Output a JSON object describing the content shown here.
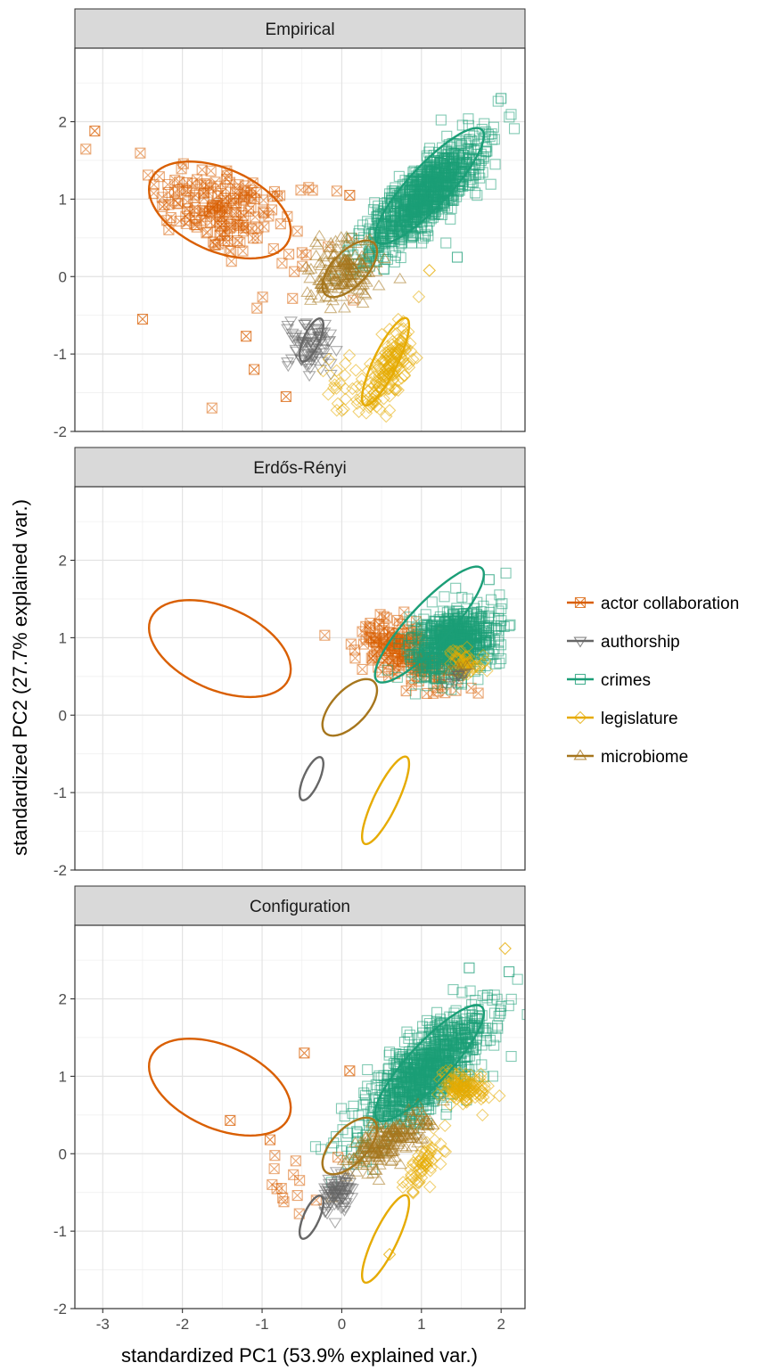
{
  "chart_data": {
    "type": "scatter",
    "xlabel": "standardized PC1 (53.9% explained var.)",
    "ylabel": "standardized PC2 (27.7% explained var.)",
    "xlim": [
      -3.35,
      2.3
    ],
    "ylim": [
      -2.0,
      2.95
    ],
    "x_ticks": [
      -3,
      -2,
      -1,
      0,
      1,
      2
    ],
    "y_ticks": [
      -2,
      -1,
      0,
      1,
      2
    ],
    "x_tick_labels": [
      "-3",
      "-2",
      "-1",
      "0",
      "1",
      "2"
    ],
    "y_tick_labels": [
      "-2",
      "-1",
      "0",
      "1",
      "2"
    ],
    "grid": true,
    "legend_position": "right",
    "colors": {
      "actor collaboration": "#d95f02",
      "authorship": "#666666",
      "crimes": "#1b9e77",
      "legislature": "#e6ab02",
      "microbiome": "#a6761d"
    },
    "series": [
      {
        "name": "actor collaboration",
        "marker": "square-x"
      },
      {
        "name": "authorship",
        "marker": "triangle-down"
      },
      {
        "name": "crimes",
        "marker": "square"
      },
      {
        "name": "legislature",
        "marker": "diamond"
      },
      {
        "name": "microbiome",
        "marker": "triangle-up"
      }
    ],
    "ellipses": [
      {
        "series": "actor collaboration",
        "center": [
          -1.53,
          0.86
        ],
        "rx": 0.95,
        "ry": 0.53,
        "angle_deg": -25
      },
      {
        "series": "authorship",
        "center": [
          -0.38,
          -0.82
        ],
        "rx": 0.3,
        "ry": 0.1,
        "angle_deg": 67
      },
      {
        "series": "crimes",
        "center": [
          1.1,
          1.17
        ],
        "rx": 0.98,
        "ry": 0.26,
        "angle_deg": 48
      },
      {
        "series": "legislature",
        "center": [
          0.55,
          -1.1
        ],
        "rx": 0.62,
        "ry": 0.15,
        "angle_deg": 65
      },
      {
        "series": "microbiome",
        "center": [
          0.1,
          0.1
        ],
        "rx": 0.45,
        "ry": 0.22,
        "angle_deg": 48
      }
    ],
    "panels": [
      {
        "title": "Empirical",
        "clusters": [
          {
            "series": "actor collaboration",
            "center": [
              -1.55,
              0.9
            ],
            "spread": [
              0.45,
              0.28
            ],
            "angle_deg": -20,
            "n": 160
          },
          {
            "series": "actor collaboration",
            "center": [
              -0.7,
              0.4
            ],
            "spread": [
              0.6,
              0.5
            ],
            "angle_deg": 0,
            "n": 25
          },
          {
            "series": "authorship",
            "center": [
              -0.38,
              -0.9
            ],
            "spread": [
              0.14,
              0.16
            ],
            "angle_deg": 65,
            "n": 80
          },
          {
            "series": "crimes",
            "center": [
              1.05,
              1.05
            ],
            "spread": [
              0.5,
              0.16
            ],
            "angle_deg": 45,
            "n": 900
          },
          {
            "series": "legislature",
            "center": [
              0.6,
              -1.15
            ],
            "spread": [
              0.3,
              0.1
            ],
            "angle_deg": 65,
            "n": 150
          },
          {
            "series": "legislature",
            "center": [
              0.05,
              -1.45
            ],
            "spread": [
              0.2,
              0.18
            ],
            "angle_deg": 0,
            "n": 30
          },
          {
            "series": "microbiome",
            "center": [
              0.0,
              0.05
            ],
            "spread": [
              0.22,
              0.2
            ],
            "angle_deg": 45,
            "n": 160
          }
        ],
        "points": [
          {
            "series": "actor collaboration",
            "x": -3.1,
            "y": 1.88
          },
          {
            "series": "actor collaboration",
            "x": -2.5,
            "y": -0.55
          },
          {
            "series": "actor collaboration",
            "x": -1.2,
            "y": -0.77
          },
          {
            "series": "actor collaboration",
            "x": -1.1,
            "y": -1.2
          },
          {
            "series": "actor collaboration",
            "x": -0.7,
            "y": -1.55
          },
          {
            "series": "actor collaboration",
            "x": 0.1,
            "y": 1.05
          },
          {
            "series": "crimes",
            "x": 1.45,
            "y": 0.25
          },
          {
            "series": "crimes",
            "x": 2.0,
            "y": 2.3
          },
          {
            "series": "legislature",
            "x": 1.1,
            "y": 0.08
          }
        ]
      },
      {
        "title": "Erdős-Rényi",
        "clusters": [
          {
            "series": "actor collaboration",
            "center": [
              0.85,
              0.8
            ],
            "spread": [
              0.35,
              0.18
            ],
            "angle_deg": -30,
            "n": 200
          },
          {
            "series": "crimes",
            "center": [
              1.4,
              0.95
            ],
            "spread": [
              0.28,
              0.2
            ],
            "angle_deg": 30,
            "n": 700
          },
          {
            "series": "legislature",
            "center": [
              1.55,
              0.7
            ],
            "spread": [
              0.07,
              0.12
            ],
            "angle_deg": 60,
            "n": 50
          },
          {
            "series": "microbiome",
            "center": [
              1.5,
              0.55
            ],
            "spread": [
              0.05,
              0.05
            ],
            "angle_deg": 0,
            "n": 10
          },
          {
            "series": "authorship",
            "center": [
              1.45,
              0.5
            ],
            "spread": [
              0.05,
              0.05
            ],
            "angle_deg": 0,
            "n": 8
          }
        ],
        "points": [
          {
            "series": "crimes",
            "x": 1.85,
            "y": 1.75
          }
        ]
      },
      {
        "title": "Configuration",
        "clusters": [
          {
            "series": "crimes",
            "center": [
              1.05,
              1.05
            ],
            "spread": [
              0.55,
              0.18
            ],
            "angle_deg": 45,
            "n": 900
          },
          {
            "series": "legislature",
            "center": [
              1.5,
              0.85
            ],
            "spread": [
              0.1,
              0.15
            ],
            "angle_deg": 70,
            "n": 120
          },
          {
            "series": "legislature",
            "center": [
              1.05,
              -0.1
            ],
            "spread": [
              0.2,
              0.08
            ],
            "angle_deg": 60,
            "n": 60
          },
          {
            "series": "microbiome",
            "center": [
              0.6,
              0.15
            ],
            "spread": [
              0.28,
              0.12
            ],
            "angle_deg": 35,
            "n": 200
          },
          {
            "series": "authorship",
            "center": [
              -0.05,
              -0.5
            ],
            "spread": [
              0.14,
              0.08
            ],
            "angle_deg": 70,
            "n": 80
          },
          {
            "series": "actor collaboration",
            "center": [
              -0.55,
              -0.45
            ],
            "spread": [
              0.25,
              0.3
            ],
            "angle_deg": 0,
            "n": 14
          }
        ],
        "points": [
          {
            "series": "actor collaboration",
            "x": -0.47,
            "y": 1.3
          },
          {
            "series": "actor collaboration",
            "x": -1.4,
            "y": 0.43
          },
          {
            "series": "actor collaboration",
            "x": -0.9,
            "y": 0.18
          },
          {
            "series": "actor collaboration",
            "x": 0.1,
            "y": 1.07
          },
          {
            "series": "legislature",
            "x": 2.05,
            "y": 2.65
          },
          {
            "series": "legislature",
            "x": 0.6,
            "y": -1.3
          },
          {
            "series": "crimes",
            "x": 1.6,
            "y": 2.4
          },
          {
            "series": "crimes",
            "x": 2.1,
            "y": 2.35
          }
        ]
      }
    ]
  }
}
